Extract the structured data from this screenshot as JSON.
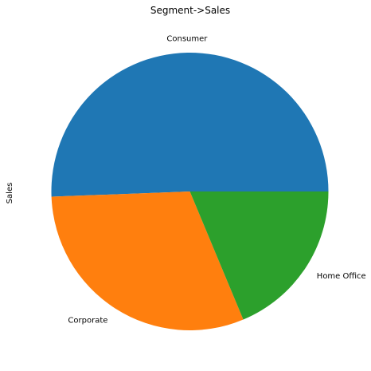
{
  "chart_data": {
    "type": "pie",
    "title": "Segment->Sales",
    "ylabel": "Sales",
    "slices": [
      {
        "label": "Consumer",
        "value": 50.6,
        "color": "#1f77b4"
      },
      {
        "label": "Corporate",
        "value": 30.7,
        "color": "#ff7f0e"
      },
      {
        "label": "Home Office",
        "value": 18.7,
        "color": "#2ca02c"
      }
    ],
    "start_angle_deg": 0,
    "direction": "counterclockwise"
  }
}
